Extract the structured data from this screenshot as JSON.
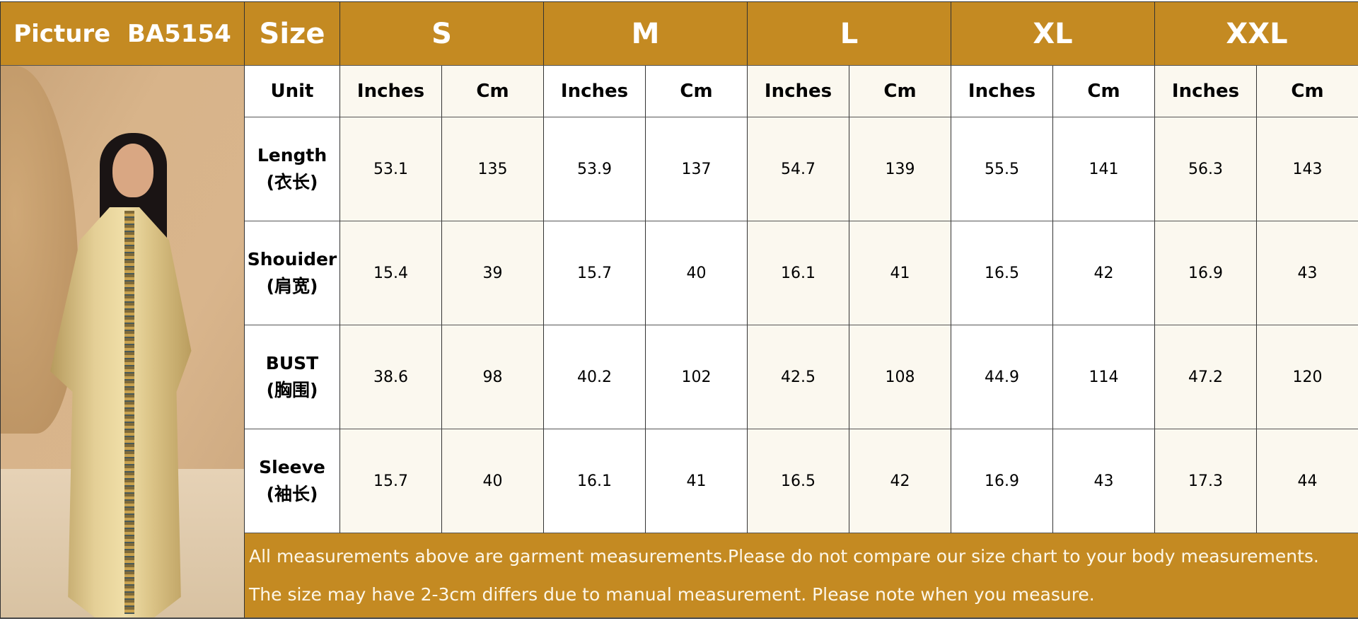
{
  "header": {
    "picture_label": "Picture  BA5154",
    "size_label": "Size",
    "sizes": [
      "S",
      "M",
      "L",
      "XL",
      "XXL"
    ]
  },
  "unit_row": {
    "label": "Unit",
    "inches": "Inches",
    "cm": "Cm"
  },
  "rows": [
    {
      "label": "Length",
      "label_cn": "(衣长)",
      "values": [
        "53.1",
        "135",
        "53.9",
        "137",
        "54.7",
        "139",
        "55.5",
        "141",
        "56.3",
        "143"
      ]
    },
    {
      "label": "Shouider",
      "label_cn": "(肩宽)",
      "values": [
        "15.4",
        "39",
        "15.7",
        "40",
        "16.1",
        "41",
        "16.5",
        "42",
        "16.9",
        "43"
      ]
    },
    {
      "label": "BUST",
      "label_cn": "(胸围)",
      "values": [
        "38.6",
        "98",
        "40.2",
        "102",
        "42.5",
        "108",
        "44.9",
        "114",
        "47.2",
        "120"
      ]
    },
    {
      "label": "Sleeve",
      "label_cn": "(袖长)",
      "values": [
        "15.7",
        "40",
        "16.1",
        "41",
        "16.5",
        "42",
        "16.9",
        "43",
        "17.3",
        "44"
      ]
    }
  ],
  "footer": {
    "line1": "All measurements above are garment measurements.Please do not compare our size chart to your body measurements.",
    "line2": "The size may have 2-3cm differs due to manual measurement. Please note when you measure."
  },
  "colors": {
    "header": "#c48a22",
    "cream": "#fbf8ef",
    "white": "#ffffff"
  }
}
